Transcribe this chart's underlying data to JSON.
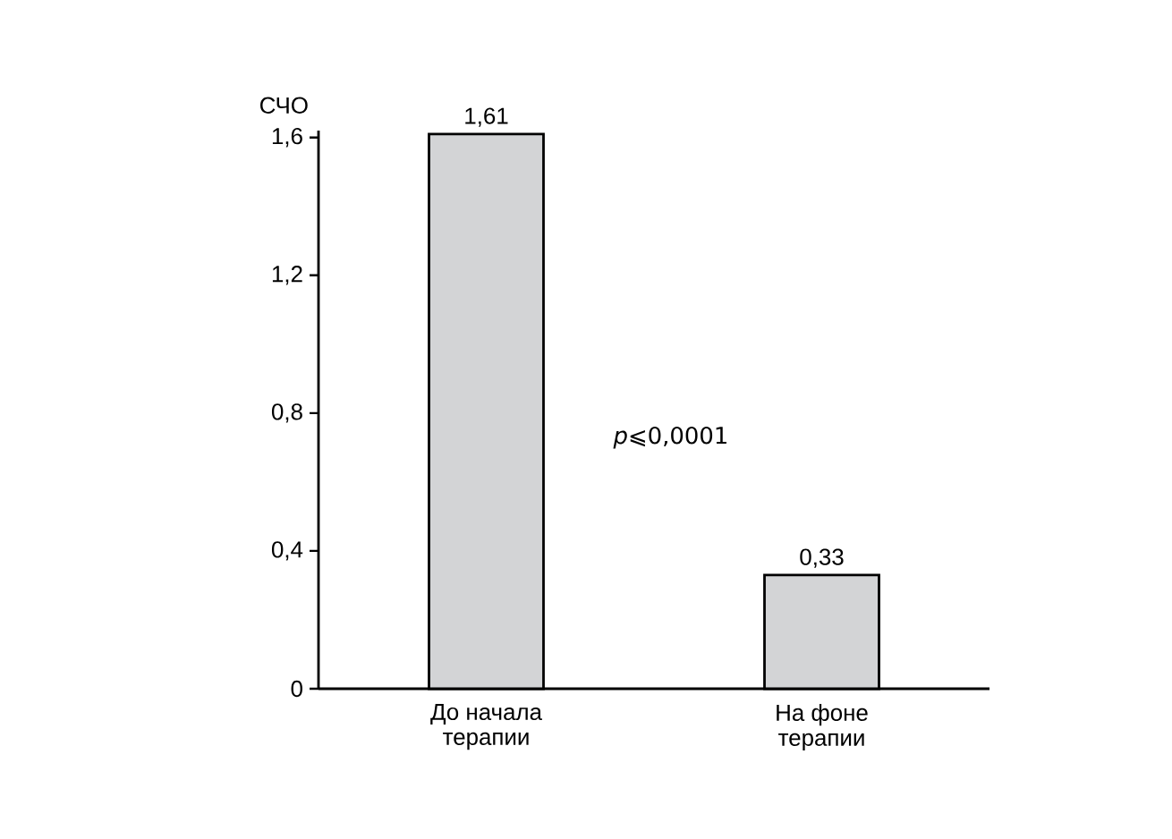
{
  "chart_data": {
    "type": "bar",
    "ylabel": "СЧО",
    "categories": [
      "До начала\nтерапии",
      "На фоне\nтерапии"
    ],
    "values": [
      1.61,
      0.33
    ],
    "value_labels": [
      "1,61",
      "0,33"
    ],
    "color": "#d3d4d6",
    "ylim": [
      0,
      1.62
    ],
    "yticks": [
      0,
      {
        "value": 0.4,
        "label": "0,4"
      },
      {
        "value": 0.8,
        "label": "0,8"
      },
      {
        "value": 1.2,
        "label": "1,2"
      },
      {
        "value": 1.6,
        "label": "1,6"
      }
    ],
    "annotations": [
      "*p*⩽0,0001"
    ],
    "grid": false
  }
}
